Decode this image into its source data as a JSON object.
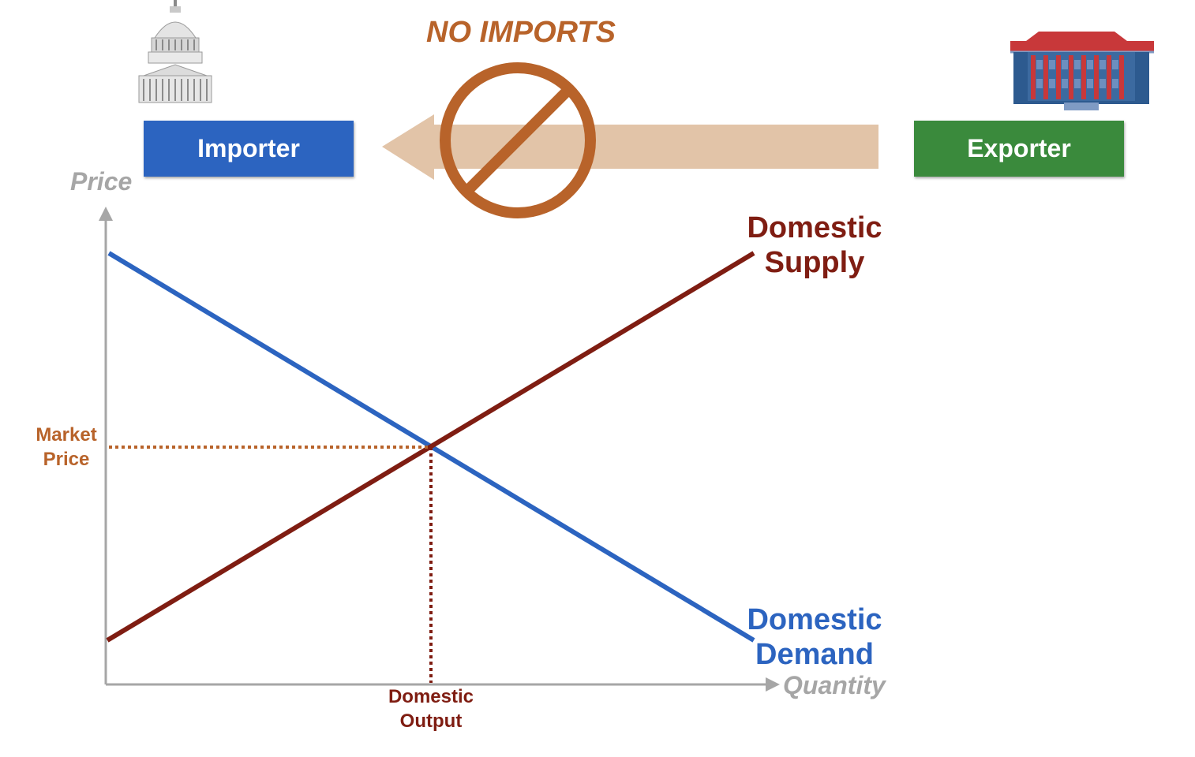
{
  "title": "NO IMPORTS",
  "importer": {
    "label": "Importer",
    "color": "#2c64c0"
  },
  "exporter": {
    "label": "Exporter",
    "color": "#3a8a3c"
  },
  "axes": {
    "y_label": "Price",
    "x_label": "Quantity",
    "color": "#a6a6a6"
  },
  "curves": {
    "supply": {
      "line1": "Domestic",
      "line2": "Supply",
      "color": "#7f1d12"
    },
    "demand": {
      "line1": "Domestic",
      "line2": "Demand",
      "color": "#2c64c0"
    }
  },
  "equilibrium": {
    "price_line1": "Market",
    "price_line2": "Price",
    "price_color": "#b8632a",
    "output_line1": "Domestic",
    "output_line2": "Output",
    "output_color": "#7f1d12"
  },
  "trade_arrow": {
    "color": "#e2c4a8",
    "ban_color": "#b8632a"
  },
  "icons": {
    "importer": "capitol-building-icon",
    "exporter": "government-building-icon"
  }
}
